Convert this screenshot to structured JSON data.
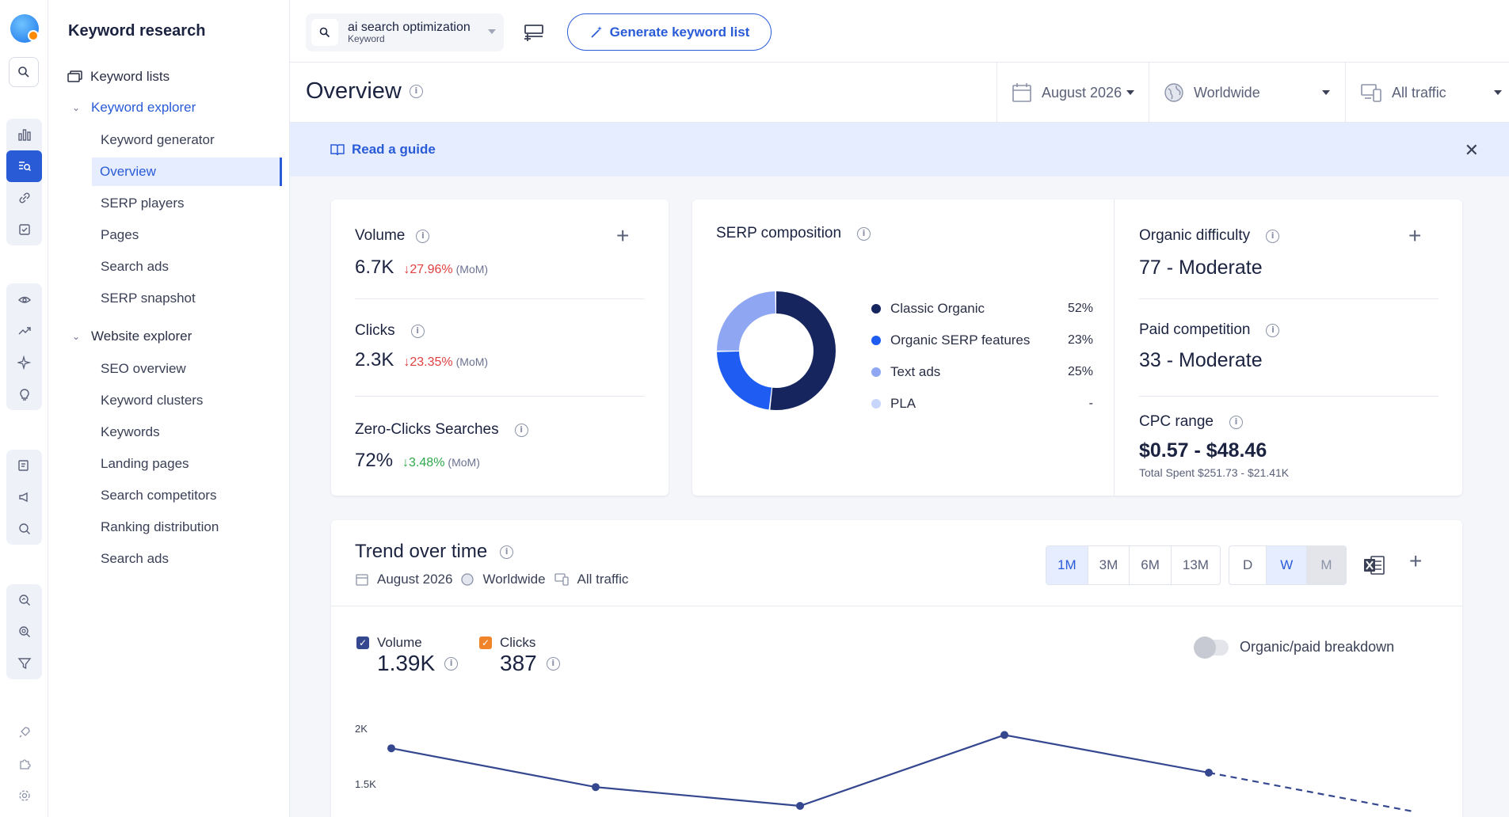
{
  "sidebar": {
    "title": "Keyword research",
    "keyword_lists": "Keyword lists",
    "keyword_explorer": "Keyword explorer",
    "explorer_items": [
      "Keyword generator",
      "Overview",
      "SERP players",
      "Pages",
      "Search ads",
      "SERP snapshot"
    ],
    "website_explorer": "Website explorer",
    "website_items": [
      "SEO overview",
      "Keyword clusters",
      "Keywords",
      "Landing pages",
      "Search competitors",
      "Ranking distribution",
      "Search ads"
    ]
  },
  "topbar": {
    "keyword": "ai search optimization",
    "keyword_type": "Keyword",
    "generate_label": "Generate keyword list"
  },
  "header": {
    "title": "Overview",
    "date": "August 2026",
    "region": "Worldwide",
    "traffic": "All traffic"
  },
  "guide": {
    "label": "Read a guide"
  },
  "volume": {
    "label": "Volume",
    "value": "6.7K",
    "delta": "↓27.96%",
    "period": "(MoM)"
  },
  "clicks": {
    "label": "Clicks",
    "value": "2.3K",
    "delta": "↓23.35%",
    "period": "(MoM)"
  },
  "zero_clicks": {
    "label": "Zero-Clicks Searches",
    "value": "72%",
    "delta": "↓3.48%",
    "period": "(MoM)"
  },
  "serp": {
    "title": "SERP composition",
    "items": [
      {
        "name": "Classic Organic",
        "pct": "52%",
        "color": "#16255e"
      },
      {
        "name": "Organic SERP features",
        "pct": "23%",
        "color": "#1f5cf2"
      },
      {
        "name": "Text ads",
        "pct": "25%",
        "color": "#8fa7f3"
      },
      {
        "name": "PLA",
        "pct": "-",
        "color": "#c9d6fb"
      }
    ]
  },
  "difficulty": {
    "organic_label": "Organic difficulty",
    "organic_value": "77 - Moderate",
    "paid_label": "Paid competition",
    "paid_value": "33 - Moderate",
    "cpc_label": "CPC range",
    "cpc_value": "$0.57 - $48.46",
    "total_spent": "Total Spent $251.73 - $21.41K"
  },
  "trend": {
    "title": "Trend over time",
    "date": "August 2026",
    "region": "Worldwide",
    "traffic": "All traffic",
    "ranges": [
      "1M",
      "3M",
      "6M",
      "13M"
    ],
    "granularity": [
      "D",
      "W",
      "M"
    ],
    "volume_label": "Volume",
    "volume_value": "1.39K",
    "clicks_label": "Clicks",
    "clicks_value": "387",
    "breakdown_label": "Organic/paid breakdown"
  },
  "chart_data": {
    "type": "line",
    "y_ticks": [
      "2K",
      "1.5K"
    ],
    "ylim": [
      1200,
      2100
    ],
    "series": [
      {
        "name": "Volume",
        "values": [
          1820,
          1470,
          1300,
          1940,
          1600,
          1250
        ],
        "color": "#34478f"
      }
    ]
  }
}
